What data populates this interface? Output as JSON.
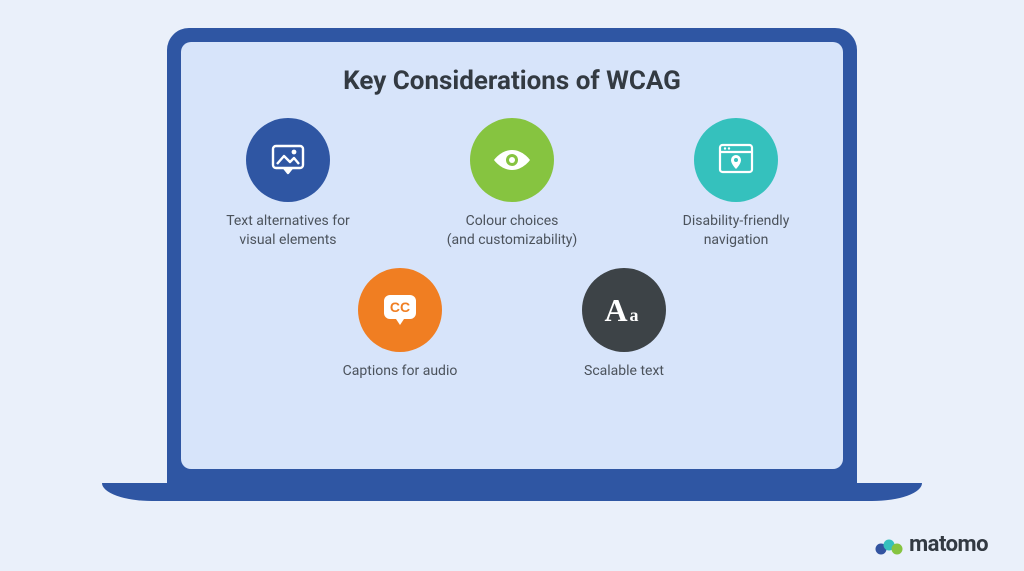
{
  "type": "infographic",
  "title": "Key Considerations of WCAG",
  "background_color": "#eaf0fa",
  "laptop_frame_color": "#2f56a3",
  "screen_background": "#d7e4fa",
  "title_color": "#333a42",
  "title_fontsize": 26,
  "label_color": "#4b525b",
  "label_fontsize": 14,
  "circle_diameter": 84,
  "items": [
    {
      "icon": "image-bubble",
      "color": "#2f56a3",
      "label": "Text alternatives for\nvisual elements"
    },
    {
      "icon": "eye",
      "color": "#86c440",
      "label": "Colour choices\n(and customizability)"
    },
    {
      "icon": "browser-pin",
      "color": "#35c1bd",
      "label": "Disability-friendly\nnavigation"
    },
    {
      "icon": "cc-bubble",
      "color": "#f07e22",
      "label": "Captions for audio"
    },
    {
      "icon": "font-size",
      "color": "#3d4347",
      "label": "Scalable text"
    }
  ],
  "rows": [
    [
      0,
      1,
      2
    ],
    [
      3,
      4
    ]
  ],
  "brand": {
    "name": "matomo",
    "logo_colors": [
      "#3253a0",
      "#35c1bd",
      "#86c440"
    ]
  }
}
